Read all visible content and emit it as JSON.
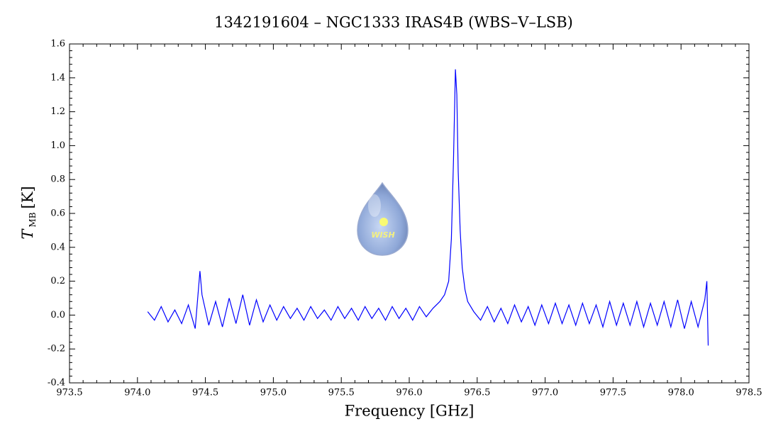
{
  "chart_data": {
    "type": "line",
    "title": "1342191604 – NGC1333 IRAS4B (WBS–V–LSB)",
    "xlabel": "Frequency [GHz]",
    "ylabel": {
      "symbol": "T",
      "subscript": "MB",
      "unit": "[K]"
    },
    "logo": "WISH",
    "color": "#0000ff",
    "x": [
      974.075,
      974.125,
      974.175,
      974.225,
      974.275,
      974.325,
      974.375,
      974.425,
      974.46,
      974.475,
      974.525,
      974.575,
      974.625,
      974.675,
      974.725,
      974.775,
      974.825,
      974.875,
      974.925,
      974.975,
      975.025,
      975.075,
      975.125,
      975.175,
      975.225,
      975.275,
      975.325,
      975.375,
      975.425,
      975.475,
      975.525,
      975.575,
      975.625,
      975.675,
      975.725,
      975.775,
      975.825,
      975.875,
      975.925,
      975.975,
      976.025,
      976.075,
      976.125,
      976.175,
      976.225,
      976.26,
      976.29,
      976.31,
      976.325,
      976.34,
      976.35,
      976.36,
      976.375,
      976.39,
      976.41,
      976.43,
      976.475,
      976.525,
      976.575,
      976.625,
      976.675,
      976.725,
      976.775,
      976.825,
      976.875,
      976.925,
      976.975,
      977.025,
      977.075,
      977.125,
      977.175,
      977.225,
      977.275,
      977.325,
      977.375,
      977.425,
      977.475,
      977.525,
      977.575,
      977.625,
      977.675,
      977.725,
      977.775,
      977.825,
      977.875,
      977.925,
      977.975,
      978.025,
      978.075,
      978.125,
      978.175,
      978.19,
      978.2
    ],
    "values": [
      0.02,
      -0.03,
      0.05,
      -0.04,
      0.03,
      -0.05,
      0.06,
      -0.08,
      0.26,
      0.12,
      -0.06,
      0.08,
      -0.07,
      0.1,
      -0.05,
      0.12,
      -0.06,
      0.09,
      -0.04,
      0.06,
      -0.03,
      0.05,
      -0.02,
      0.04,
      -0.03,
      0.05,
      -0.02,
      0.03,
      -0.03,
      0.05,
      -0.02,
      0.04,
      -0.03,
      0.05,
      -0.02,
      0.04,
      -0.03,
      0.05,
      -0.02,
      0.04,
      -0.03,
      0.05,
      -0.01,
      0.04,
      0.08,
      0.12,
      0.2,
      0.45,
      0.9,
      1.45,
      1.3,
      0.85,
      0.5,
      0.28,
      0.15,
      0.08,
      0.02,
      -0.03,
      0.05,
      -0.04,
      0.04,
      -0.05,
      0.06,
      -0.04,
      0.05,
      -0.06,
      0.06,
      -0.05,
      0.07,
      -0.05,
      0.06,
      -0.06,
      0.07,
      -0.05,
      0.06,
      -0.07,
      0.08,
      -0.06,
      0.07,
      -0.06,
      0.08,
      -0.07,
      0.07,
      -0.06,
      0.08,
      -0.07,
      0.09,
      -0.08,
      0.08,
      -0.07,
      0.09,
      0.2,
      -0.18
    ],
    "xlim": [
      973.5,
      978.5
    ],
    "xticks": [
      973.5,
      {
        "value": 974,
        "label": "974.0"
      },
      974.5,
      {
        "value": 975,
        "label": "975.0"
      },
      975.5,
      {
        "value": 976,
        "label": "976.0"
      },
      976.5,
      {
        "value": 977,
        "label": "977.0"
      },
      977.5,
      {
        "value": 978,
        "label": "978.0"
      },
      978.5
    ],
    "ylim": [
      -0.4,
      1.6
    ],
    "yticks": [
      -0.4,
      -0.2,
      {
        "value": 0,
        "label": "0.0"
      },
      0.2,
      0.4,
      0.6,
      0.8,
      {
        "value": 1,
        "label": "1.0"
      },
      1.2,
      1.4,
      1.6
    ]
  }
}
